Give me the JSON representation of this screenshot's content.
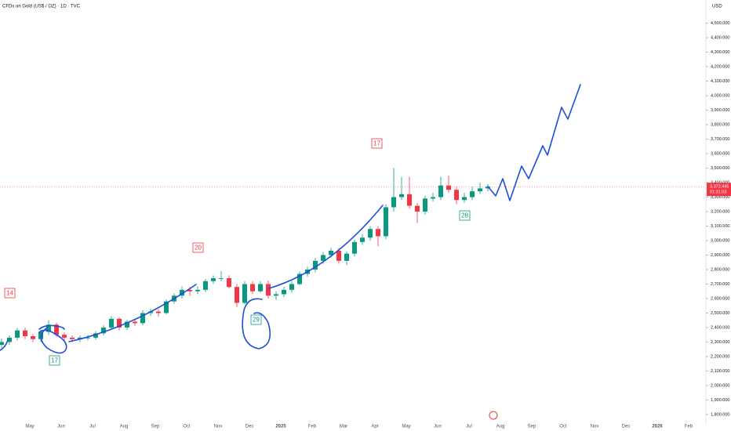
{
  "chart_data": {
    "type": "candlestick",
    "title": "CFDs on Gold (US$ / OZ) · 1D · TVC",
    "currency": "USD",
    "last_price": "3,372.445",
    "countdown": "01:31:03",
    "up_color": "#089981",
    "down_color": "#f23645",
    "x": [
      0.1,
      0.35,
      0.6,
      0.85,
      1.1,
      1.35,
      1.6,
      1.85,
      2.1,
      2.35,
      2.6,
      2.85,
      3.1,
      3.35,
      3.6,
      3.85,
      4.1,
      4.35,
      4.6,
      4.85,
      5.1,
      5.35,
      5.6,
      5.85,
      6.1,
      6.35,
      6.6,
      6.85,
      7.1,
      7.35,
      7.6,
      7.85,
      8.1,
      8.35,
      8.6,
      8.85,
      9.1,
      9.35,
      9.6,
      9.85,
      10.1,
      10.35,
      10.6,
      10.85,
      11.1,
      11.35,
      11.6,
      11.85,
      12.1,
      12.35,
      12.6,
      12.85,
      13.1,
      13.35,
      13.6,
      13.85,
      14.1,
      14.35,
      14.6,
      14.85,
      15.1,
      15.35,
      15.6
    ],
    "open": [
      2280,
      2300,
      2330,
      2380,
      2340,
      2320,
      2370,
      2420,
      2350,
      2330,
      2320,
      2330,
      2330,
      2360,
      2400,
      2460,
      2400,
      2440,
      2430,
      2500,
      2510,
      2500,
      2580,
      2620,
      2660,
      2650,
      2660,
      2720,
      2740,
      2740,
      2680,
      2570,
      2700,
      2650,
      2700,
      2620,
      2630,
      2660,
      2700,
      2770,
      2800,
      2860,
      2900,
      2930,
      2860,
      2910,
      2990,
      3020,
      3080,
      3030,
      3230,
      3300,
      3320,
      3240,
      3200,
      3290,
      3300,
      3380,
      3350,
      3280,
      3300,
      3340,
      3360
    ],
    "high": [
      2325,
      2345,
      2395,
      2400,
      2355,
      2385,
      2450,
      2435,
      2365,
      2345,
      2345,
      2350,
      2375,
      2415,
      2480,
      2470,
      2455,
      2460,
      2520,
      2530,
      2525,
      2595,
      2635,
      2685,
      2680,
      2685,
      2735,
      2760,
      2790,
      2760,
      2700,
      2720,
      2720,
      2720,
      2725,
      2650,
      2680,
      2720,
      2785,
      2820,
      2880,
      2920,
      2950,
      2950,
      2925,
      3005,
      3045,
      3100,
      3100,
      3250,
      3500,
      3440,
      3440,
      3260,
      3310,
      3330,
      3440,
      3450,
      3370,
      3330,
      3370,
      3400,
      3390
    ],
    "low": [
      2260,
      2280,
      2310,
      2320,
      2300,
      2300,
      2350,
      2335,
      2310,
      2300,
      2300,
      2310,
      2315,
      2345,
      2385,
      2380,
      2385,
      2410,
      2415,
      2480,
      2475,
      2490,
      2565,
      2600,
      2620,
      2630,
      2645,
      2700,
      2720,
      2670,
      2540,
      2560,
      2630,
      2640,
      2600,
      2590,
      2610,
      2640,
      2690,
      2750,
      2780,
      2840,
      2880,
      2840,
      2830,
      2890,
      2970,
      3000,
      2960,
      3010,
      3200,
      3280,
      3220,
      3120,
      3180,
      3270,
      3280,
      3330,
      3250,
      3260,
      3280,
      3320,
      3340
    ],
    "close": [
      2300,
      2330,
      2380,
      2340,
      2320,
      2370,
      2420,
      2350,
      2330,
      2320,
      2330,
      2330,
      2360,
      2400,
      2460,
      2400,
      2440,
      2430,
      2500,
      2510,
      2500,
      2580,
      2620,
      2660,
      2650,
      2660,
      2720,
      2740,
      2740,
      2680,
      2570,
      2700,
      2650,
      2700,
      2620,
      2630,
      2660,
      2700,
      2770,
      2800,
      2860,
      2900,
      2930,
      2860,
      2910,
      2990,
      3020,
      3080,
      3030,
      3230,
      3300,
      3320,
      3240,
      3200,
      3290,
      3300,
      3380,
      3350,
      3280,
      3300,
      3340,
      3360,
      3372
    ],
    "xlim": [
      0.05,
      22.55
    ],
    "xticks": [
      {
        "value": 1,
        "label": "May"
      },
      {
        "value": 2,
        "label": "Jun"
      },
      {
        "value": 3,
        "label": "Jul"
      },
      {
        "value": 4,
        "label": "Aug"
      },
      {
        "value": 5,
        "label": "Sep"
      },
      {
        "value": 6,
        "label": "Oct"
      },
      {
        "value": 7,
        "label": "Nov"
      },
      {
        "value": 8,
        "label": "Dec"
      },
      {
        "value": 9,
        "label": "2025"
      },
      {
        "value": 10,
        "label": "Feb"
      },
      {
        "value": 11,
        "label": "Mar"
      },
      {
        "value": 12,
        "label": "Apr"
      },
      {
        "value": 13,
        "label": "May"
      },
      {
        "value": 14,
        "label": "Jun"
      },
      {
        "value": 15,
        "label": "Jul"
      },
      {
        "value": 16,
        "label": "Aug"
      },
      {
        "value": 17,
        "label": "Sep"
      },
      {
        "value": 18,
        "label": "Oct"
      },
      {
        "value": 19,
        "label": "Nov"
      },
      {
        "value": 20,
        "label": "Dec"
      },
      {
        "value": 21,
        "label": "2026"
      },
      {
        "value": 22,
        "label": "Feb"
      }
    ],
    "ylim": [
      1740,
      4660
    ],
    "yticks": [
      {
        "value": 1800,
        "label": "1,800.000"
      },
      {
        "value": 1900,
        "label": "1,900.000"
      },
      {
        "value": 2000,
        "label": "2,000.000"
      },
      {
        "value": 2100,
        "label": "2,100.000"
      },
      {
        "value": 2200,
        "label": "2,200.000"
      },
      {
        "value": 2300,
        "label": "2,300.000"
      },
      {
        "value": 2400,
        "label": "2,400.000"
      },
      {
        "value": 2500,
        "label": "2,500.000"
      },
      {
        "value": 2600,
        "label": "2,600.000"
      },
      {
        "value": 2700,
        "label": "2,700.000"
      },
      {
        "value": 2800,
        "label": "2,800.000"
      },
      {
        "value": 2900,
        "label": "2,900.000"
      },
      {
        "value": 3000,
        "label": "3,000.000"
      },
      {
        "value": 3100,
        "label": "3,100.000"
      },
      {
        "value": 3200,
        "label": "3,200.000"
      },
      {
        "value": 3300,
        "label": "3,300.000"
      },
      {
        "value": 3400,
        "label": "3,400.000"
      },
      {
        "value": 3500,
        "label": "3,500.000"
      },
      {
        "value": 3600,
        "label": "3,600.000"
      },
      {
        "value": 3700,
        "label": "3,700.000"
      },
      {
        "value": 3800,
        "label": "3,800.000"
      },
      {
        "value": 3900,
        "label": "3,900.000"
      },
      {
        "value": 4000,
        "label": "4,000.000"
      },
      {
        "value": 4100,
        "label": "4,100.000"
      },
      {
        "value": 4200,
        "label": "4,200.000"
      },
      {
        "value": 4300,
        "label": "4,300.000"
      },
      {
        "value": 4400,
        "label": "4,400.000"
      },
      {
        "value": 4500,
        "label": "4,500.000"
      }
    ],
    "annotations": [
      "14",
      "20",
      "17",
      "17",
      "29",
      "28"
    ]
  }
}
